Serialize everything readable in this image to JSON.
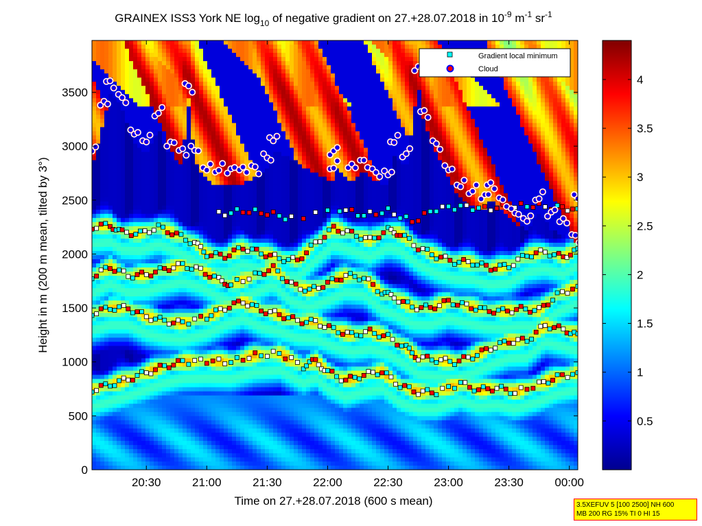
{
  "chart_data": {
    "type": "heatmap",
    "title": {
      "prefix": "GRAINEX ISS3 York NE log",
      "base_sub": "10",
      "middle": " of negative gradient on 27.+28.07.2018 in 10",
      "exp1": "-9",
      "mid2": " m",
      "exp2": "-1",
      "mid3": " sr",
      "exp3": "-1"
    },
    "xlabel": "Time on 27.+28.07.2018 (600 s mean)",
    "ylabel": "Height in m (200 m mean, tilted by 3°)",
    "x_ticks": [
      "20:30",
      "21:00",
      "21:30",
      "22:00",
      "22:30",
      "23:00",
      "23:30",
      "00:00"
    ],
    "x_tick_hours": [
      20.5,
      21.0,
      21.5,
      22.0,
      22.5,
      23.0,
      23.5,
      24.0
    ],
    "x_range_hours": [
      20.05,
      24.07
    ],
    "y_ticks": [
      "0",
      "500",
      "1000",
      "1500",
      "2000",
      "2500",
      "3000",
      "3500"
    ],
    "y_tick_values": [
      0,
      500,
      1000,
      1500,
      2000,
      2500,
      3000,
      3500
    ],
    "y_range": [
      0,
      3980
    ],
    "colorbar": {
      "min": 0.0,
      "max": 4.4,
      "ticks": [
        "0.5",
        "1",
        "1.5",
        "2",
        "2.5",
        "3",
        "3.5",
        "4"
      ],
      "tick_values": [
        0.5,
        1.0,
        1.5,
        2.0,
        2.5,
        3.0,
        3.5,
        4.0
      ],
      "colormap": "jet"
    },
    "legend": {
      "position": "top-right",
      "items": [
        {
          "label": "Gradient local minimum",
          "marker": "square",
          "color": "#00ffff"
        },
        {
          "label": "Cloud",
          "marker": "circle",
          "color": "#ff0000"
        }
      ]
    },
    "series": [
      {
        "name": "Gradient local minimum",
        "layers": [
          {
            "points": [
              [
                20.05,
                740
              ],
              [
                20.2,
                790
              ],
              [
                20.35,
                840
              ],
              [
                20.5,
                900
              ],
              [
                20.65,
                960
              ],
              [
                20.8,
                1000
              ],
              [
                21.0,
                1010
              ],
              [
                21.2,
                1000
              ],
              [
                21.4,
                1060
              ],
              [
                21.6,
                1080
              ],
              [
                21.8,
                960
              ],
              [
                21.9,
                1010
              ],
              [
                22.0,
                910
              ],
              [
                22.15,
                830
              ],
              [
                22.3,
                880
              ],
              [
                22.45,
                910
              ],
              [
                22.6,
                780
              ],
              [
                22.75,
                720
              ],
              [
                22.9,
                720
              ],
              [
                23.1,
                800
              ],
              [
                23.25,
                740
              ],
              [
                23.4,
                760
              ],
              [
                23.55,
                720
              ],
              [
                23.75,
                790
              ],
              [
                23.9,
                860
              ],
              [
                24.07,
                900
              ]
            ]
          },
          {
            "points": [
              [
                20.05,
                1450
              ],
              [
                20.2,
                1500
              ],
              [
                20.35,
                1500
              ],
              [
                20.5,
                1420
              ],
              [
                20.65,
                1380
              ],
              [
                20.8,
                1360
              ],
              [
                21.0,
                1420
              ],
              [
                21.15,
                1500
              ],
              [
                21.3,
                1560
              ],
              [
                21.45,
                1480
              ],
              [
                21.6,
                1440
              ],
              [
                21.75,
                1380
              ],
              [
                21.9,
                1370
              ],
              [
                22.05,
                1300
              ],
              [
                22.2,
                1250
              ],
              [
                22.35,
                1280
              ],
              [
                22.5,
                1230
              ],
              [
                22.65,
                1130
              ],
              [
                22.75,
                1040
              ],
              [
                22.9,
                1020
              ],
              [
                23.05,
                1000
              ],
              [
                23.2,
                1050
              ],
              [
                23.35,
                1130
              ],
              [
                23.5,
                1190
              ],
              [
                23.65,
                1200
              ],
              [
                23.8,
                1340
              ],
              [
                23.95,
                1300
              ],
              [
                24.07,
                1260
              ]
            ]
          },
          {
            "points": [
              [
                20.05,
                1790
              ],
              [
                20.2,
                1880
              ],
              [
                20.35,
                1800
              ],
              [
                20.5,
                1810
              ],
              [
                20.65,
                1860
              ],
              [
                20.8,
                1900
              ],
              [
                20.95,
                1850
              ],
              [
                21.1,
                1760
              ],
              [
                21.2,
                1720
              ],
              [
                21.4,
                1800
              ],
              [
                21.55,
                1870
              ],
              [
                21.7,
                1720
              ],
              [
                21.85,
                1660
              ],
              [
                22.0,
                1730
              ],
              [
                22.15,
                1800
              ],
              [
                22.3,
                1780
              ],
              [
                22.45,
                1640
              ],
              [
                22.55,
                1600
              ],
              [
                22.7,
                1510
              ],
              [
                22.85,
                1500
              ],
              [
                23.0,
                1560
              ],
              [
                23.15,
                1520
              ],
              [
                23.3,
                1480
              ],
              [
                23.45,
                1470
              ],
              [
                23.6,
                1490
              ],
              [
                23.75,
                1480
              ],
              [
                23.9,
                1620
              ],
              [
                24.07,
                1700
              ]
            ]
          },
          {
            "points": [
              [
                20.05,
                2250
              ],
              [
                20.2,
                2270
              ],
              [
                20.3,
                2200
              ],
              [
                20.45,
                2190
              ],
              [
                20.6,
                2250
              ],
              [
                20.75,
                2180
              ],
              [
                20.9,
                2100
              ],
              [
                21.0,
                2000
              ],
              [
                21.15,
                1980
              ],
              [
                21.3,
                2060
              ],
              [
                21.45,
                2010
              ],
              [
                21.6,
                1960
              ],
              [
                21.75,
                1940
              ],
              [
                21.9,
                2100
              ],
              [
                22.05,
                2240
              ],
              [
                22.2,
                2190
              ],
              [
                22.35,
                2130
              ],
              [
                22.5,
                2220
              ],
              [
                22.6,
                2190
              ],
              [
                22.75,
                2060
              ],
              [
                22.9,
                1980
              ],
              [
                23.05,
                1930
              ],
              [
                23.2,
                1920
              ],
              [
                23.35,
                1870
              ],
              [
                23.5,
                1890
              ],
              [
                23.65,
                1990
              ],
              [
                23.8,
                2020
              ],
              [
                23.95,
                1970
              ],
              [
                24.07,
                2050
              ]
            ]
          },
          {
            "points": [
              [
                21.1,
                2370
              ],
              [
                21.3,
                2400
              ],
              [
                21.5,
                2380
              ],
              [
                21.7,
                2330
              ],
              [
                22.1,
                2420
              ],
              [
                22.3,
                2360
              ],
              [
                22.5,
                2400
              ],
              [
                22.7,
                2300
              ],
              [
                22.9,
                2420
              ],
              [
                23.1,
                2440
              ],
              [
                23.3,
                2420
              ],
              [
                23.5,
                2440
              ],
              [
                23.7,
                2450
              ],
              [
                23.9,
                2430
              ],
              [
                24.07,
                2420
              ]
            ]
          }
        ]
      },
      {
        "name": "Cloud",
        "layers": [
          {
            "points": [
              [
                20.05,
                2920
              ],
              [
                20.15,
                3380
              ],
              [
                20.2,
                3600
              ],
              [
                20.3,
                3480
              ],
              [
                20.4,
                3150
              ],
              [
                20.5,
                3050
              ],
              [
                20.6,
                3280
              ],
              [
                20.7,
                3000
              ],
              [
                20.8,
                2960
              ],
              [
                20.85,
                3580
              ],
              [
                20.9,
                3000
              ],
              [
                21.0,
                2800
              ],
              [
                21.1,
                2760
              ],
              [
                21.2,
                2750
              ],
              [
                21.3,
                2780
              ],
              [
                21.4,
                2820
              ],
              [
                21.5,
                2930
              ],
              [
                21.55,
                3080
              ],
              [
                22.05,
                2790
              ],
              [
                22.05,
                2920
              ],
              [
                22.2,
                2800
              ],
              [
                22.3,
                2870
              ],
              [
                22.4,
                2790
              ],
              [
                22.5,
                2770
              ],
              [
                22.55,
                3040
              ],
              [
                22.65,
                2900
              ],
              [
                22.75,
                3700
              ],
              [
                22.8,
                3320
              ],
              [
                22.9,
                3050
              ],
              [
                23.0,
                2820
              ],
              [
                23.1,
                2640
              ],
              [
                23.2,
                2560
              ],
              [
                23.3,
                2510
              ],
              [
                23.35,
                2640
              ],
              [
                23.45,
                2520
              ],
              [
                23.55,
                2420
              ],
              [
                23.65,
                2330
              ],
              [
                23.75,
                2500
              ],
              [
                23.85,
                2350
              ],
              [
                23.95,
                2300
              ],
              [
                24.05,
                2180
              ],
              [
                24.07,
                2550
              ]
            ]
          }
        ]
      }
    ],
    "annotation": {
      "line1": "3.5XEFUV 5 [100 2500] NH 600",
      "line2": "MB 200 RG 15% TI 0 HI 15",
      "background": "#ffff00",
      "border": "#ff0000"
    }
  },
  "colors": {
    "background": "#ffffff",
    "plot_bg": "#00008f",
    "cyan_marker": "#00ffff",
    "cloud_edge": "#ffffff",
    "cloud_line": "#0000ff",
    "cloud_fill": "#ff0000"
  }
}
